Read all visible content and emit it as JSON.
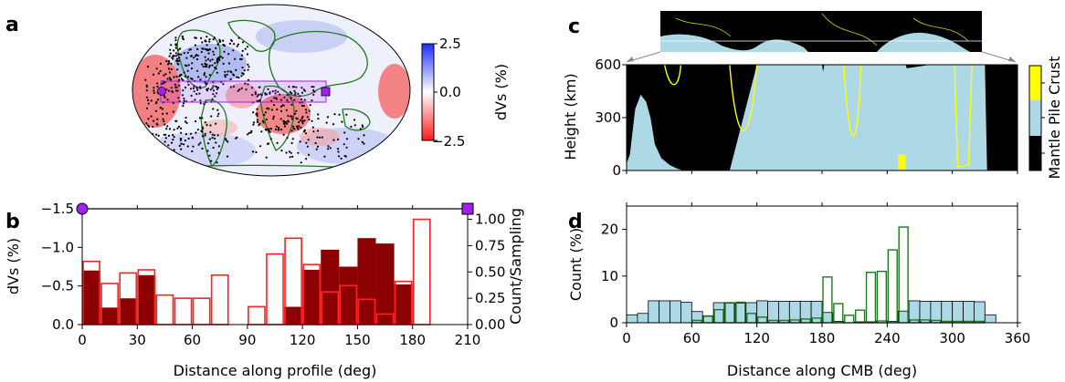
{
  "panels": {
    "a": {
      "label": "a",
      "colorbar": {
        "ticks": [
          "2.5",
          "0.0",
          "−2.5"
        ],
        "label": "dVs (%)",
        "colors": {
          "positive": "#1f2bff",
          "zero": "#ffffff",
          "negative": "#ff1a1a"
        }
      }
    },
    "b": {
      "label": "b",
      "xlabel": "Distance along profile (deg)",
      "ylabel": "dVs (%)",
      "y2label": "Count/Sampling",
      "xticks": [
        "0",
        "30",
        "60",
        "90",
        "120",
        "150",
        "180",
        "210"
      ],
      "yticks": [
        "−1.5",
        "−1.0",
        "−0.5",
        "0.0"
      ],
      "y2ticks": [
        "0.00",
        "0.25",
        "0.50",
        "0.75",
        "1.00"
      ]
    },
    "c": {
      "label": "c",
      "ylabel": "Height (km)",
      "yticks": [
        "600",
        "300",
        "0"
      ],
      "colorbar": {
        "label": "Mantle Pile Crust",
        "colors": {
          "mantle": "#000000",
          "pile": "#add8e6",
          "crust": "#ffff00"
        }
      }
    },
    "d": {
      "label": "d",
      "xlabel": "Distance along CMB (deg)",
      "ylabel": "Count (%)",
      "xticks": [
        "0",
        "60",
        "120",
        "180",
        "240",
        "300",
        "360"
      ],
      "yticks": [
        "20",
        "10",
        "0"
      ]
    }
  },
  "chart_data": [
    {
      "panel": "b",
      "type": "bar",
      "xlabel": "Distance along profile (deg)",
      "ylabel": "dVs (%)",
      "y2label": "Count/Sampling",
      "xlim": [
        0,
        210
      ],
      "ylim": [
        -1.5,
        0
      ],
      "y2lim": [
        0,
        1.1
      ],
      "bin_width": 10,
      "x": [
        0,
        10,
        20,
        30,
        40,
        50,
        60,
        70,
        80,
        90,
        100,
        110,
        120,
        130,
        140,
        150,
        160,
        170,
        180
      ],
      "series": [
        {
          "style": "filled",
          "color": "#8b0000",
          "values": [
            -0.7,
            -0.22,
            -0.34,
            -0.64,
            null,
            null,
            null,
            null,
            null,
            null,
            null,
            -0.23,
            -0.71,
            -0.97,
            -0.75,
            -1.12,
            -1.05,
            -0.52,
            null
          ]
        },
        {
          "style": "outline",
          "color": "#ff2020",
          "values": [
            0.6,
            0.39,
            0.49,
            0.52,
            0.28,
            0.25,
            0.25,
            0.47,
            null,
            0.17,
            0.67,
            0.82,
            0.57,
            0.31,
            0.37,
            0.24,
            0.1,
            0.41,
            1.0
          ]
        }
      ],
      "profile_markers": [
        {
          "shape": "circle",
          "color": "#a020f0",
          "x": 0
        },
        {
          "shape": "square",
          "color": "#a020f0",
          "x": 210
        }
      ]
    },
    {
      "panel": "d",
      "type": "bar",
      "xlabel": "Distance along CMB (deg)",
      "ylabel": "Count (%)",
      "xlim": [
        0,
        360
      ],
      "ylim": [
        0,
        25
      ],
      "bin_width": 10,
      "x": [
        0,
        10,
        20,
        30,
        40,
        50,
        60,
        70,
        80,
        90,
        100,
        110,
        120,
        130,
        140,
        150,
        160,
        170,
        180,
        190,
        200,
        210,
        220,
        230,
        240,
        250,
        260,
        270,
        280,
        290,
        300,
        310,
        320,
        330
      ],
      "series": [
        {
          "name": "Pile",
          "style": "filled",
          "color": "#add8e6",
          "values": [
            1.7,
            2.0,
            4.7,
            4.7,
            4.7,
            4.4,
            2.4,
            1.5,
            4.3,
            4.2,
            4.2,
            4.3,
            4.7,
            4.6,
            4.6,
            4.6,
            4.6,
            4.6,
            2.2,
            0.3,
            0,
            0.2,
            0.2,
            0.4,
            0.3,
            2.5,
            4.7,
            4.6,
            4.6,
            4.6,
            4.6,
            4.6,
            4.5,
            1.7
          ]
        },
        {
          "name": "Crust",
          "style": "outline",
          "color": "#1f7a1f",
          "values": [
            0,
            0,
            0,
            0,
            0,
            0,
            0.5,
            1.4,
            2.8,
            4.3,
            4.4,
            2.0,
            1.2,
            0.5,
            0.5,
            0.6,
            0.8,
            1.0,
            9.8,
            4.1,
            1.6,
            2.7,
            10.8,
            11.0,
            15.6,
            20.5,
            0.6,
            0.6,
            0.5,
            0.3,
            0.3,
            0.3,
            0.3,
            0
          ]
        }
      ]
    },
    {
      "panel": "c",
      "type": "area",
      "ylabel": "Height (km)",
      "ylim": [
        0,
        600
      ],
      "note_values": "pile top height vs distance",
      "x": [
        0,
        3,
        8,
        13,
        18,
        22,
        26,
        32,
        40,
        47,
        52,
        70,
        95,
        120,
        140,
        160,
        168,
        172,
        175,
        178,
        180,
        181,
        182,
        200,
        220,
        240,
        252,
        257,
        258,
        280,
        300,
        320,
        330,
        332,
        340,
        360
      ],
      "pile_height": [
        40,
        90,
        350,
        430,
        390,
        300,
        150,
        70,
        30,
        10,
        0,
        0,
        0,
        600,
        600,
        600,
        600,
        600,
        600,
        600,
        600,
        560,
        600,
        600,
        600,
        600,
        600,
        600,
        580,
        600,
        600,
        600,
        600,
        0,
        0,
        0
      ]
    }
  ]
}
